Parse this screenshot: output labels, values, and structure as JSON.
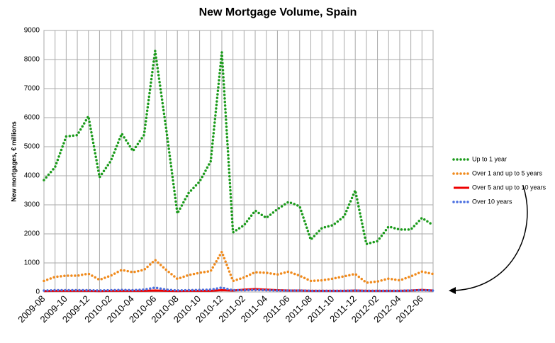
{
  "chart_data": {
    "type": "line",
    "title": "New Mortgage Volume, Spain",
    "y_label": "New mortgages, € millions",
    "categories": [
      "2009-08",
      null,
      "2009-10",
      null,
      "2009-12",
      null,
      "2010-02",
      null,
      "2010-04",
      null,
      "2010-06",
      null,
      "2010-08",
      null,
      "2010-10",
      null,
      "2010-12",
      null,
      "2011-02",
      null,
      "2011-04",
      null,
      "2011-06",
      null,
      "2011-08",
      null,
      "2011-10",
      null,
      "2011-12",
      null,
      "2012-02",
      null,
      "2012-04",
      null,
      "2012-06",
      null
    ],
    "series": [
      {
        "name": "Up to 1 year",
        "color": "#1a9a1a",
        "dash": "dotted",
        "values": [
          3850,
          4300,
          5350,
          5400,
          6050,
          3950,
          4500,
          5450,
          4850,
          5400,
          8300,
          5600,
          2700,
          3400,
          3800,
          4500,
          8250,
          2050,
          2300,
          2800,
          2550,
          2850,
          3100,
          2950,
          1800,
          2200,
          2300,
          2600,
          3500,
          1650,
          1750,
          2250,
          2150,
          2150,
          2550,
          2300
        ]
      },
      {
        "name": "Over 1 and up to 5 years",
        "color": "#f08a1c",
        "dash": "dotted",
        "values": [
          380,
          520,
          560,
          560,
          630,
          420,
          560,
          760,
          680,
          760,
          1100,
          760,
          450,
          580,
          660,
          720,
          1380,
          380,
          500,
          680,
          660,
          600,
          700,
          560,
          380,
          400,
          460,
          540,
          620,
          320,
          360,
          460,
          400,
          540,
          700,
          620
        ]
      },
      {
        "name": "Over 5 and up to 10 years",
        "color": "#ee0000",
        "dash": "solid",
        "values": [
          30,
          40,
          40,
          40,
          40,
          30,
          40,
          40,
          40,
          40,
          50,
          40,
          30,
          40,
          40,
          40,
          60,
          50,
          80,
          100,
          80,
          60,
          50,
          50,
          40,
          40,
          40,
          40,
          50,
          40,
          40,
          40,
          40,
          50,
          70,
          50
        ]
      },
      {
        "name": "Over 10 years",
        "color": "#4a6fe0",
        "dash": "dotted",
        "values": [
          50,
          60,
          60,
          60,
          60,
          50,
          60,
          70,
          60,
          80,
          150,
          80,
          50,
          60,
          70,
          80,
          150,
          60,
          60,
          70,
          60,
          50,
          50,
          50,
          40,
          40,
          40,
          40,
          50,
          40,
          40,
          40,
          40,
          50,
          60,
          50
        ]
      }
    ],
    "ylim": [
      0,
      9000
    ],
    "yticks": [
      0,
      1000,
      2000,
      3000,
      4000,
      5000,
      6000,
      7000,
      8000,
      9000
    ],
    "grid": true,
    "legend": "right"
  }
}
